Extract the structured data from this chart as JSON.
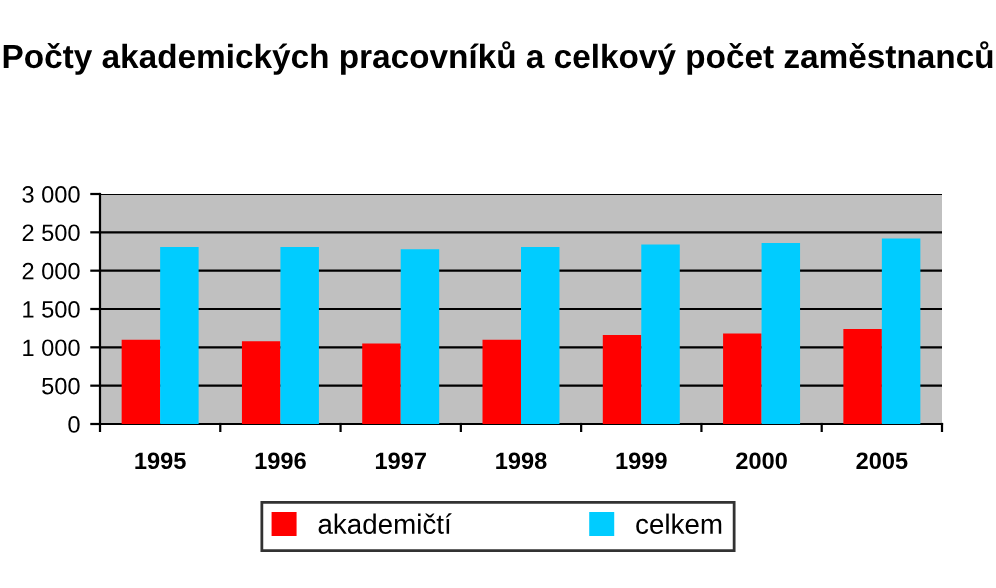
{
  "chart_data": {
    "type": "bar",
    "title": "Počty akademických pracovníků a celkový počet zaměstnanců",
    "categories": [
      "1995",
      "1996",
      "1997",
      "1998",
      "1999",
      "2000",
      "2005"
    ],
    "series": [
      {
        "name": "akademičtí",
        "color": "#ff0000",
        "values": [
          1100,
          1080,
          1050,
          1100,
          1160,
          1180,
          1240
        ]
      },
      {
        "name": "celkem",
        "color": "#00ccff",
        "values": [
          2310,
          2310,
          2280,
          2310,
          2340,
          2360,
          2420
        ]
      }
    ],
    "ylim": [
      0,
      3000
    ],
    "yticks": [
      {
        "value": 0,
        "label": "0"
      },
      {
        "value": 500,
        "label": "500"
      },
      {
        "value": 1000,
        "label": "1 000"
      },
      {
        "value": 1500,
        "label": "1 500"
      },
      {
        "value": 2000,
        "label": "2 000"
      },
      {
        "value": 2500,
        "label": "2 500"
      },
      {
        "value": 3000,
        "label": "3 000"
      }
    ],
    "grid": "y",
    "legend": "bottom"
  }
}
